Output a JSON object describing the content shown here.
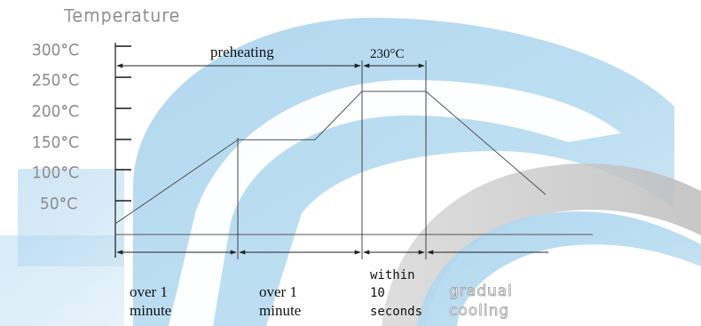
{
  "chart_data": {
    "type": "line",
    "ylabel": "Temperature",
    "ytick_labels": [
      "300°C",
      "250°C",
      "200°C",
      "150°C",
      "100°C",
      "50°C"
    ],
    "ylim": [
      0,
      300
    ],
    "series": [
      {
        "points": [
          {
            "x": 0,
            "y": 25
          },
          {
            "x": 1,
            "y": 155
          },
          {
            "x": 2,
            "y": 155
          },
          {
            "x": 3,
            "y": 230
          },
          {
            "x": 4,
            "y": 230
          },
          {
            "x": 5.5,
            "y": 70
          }
        ]
      }
    ],
    "phases": [
      {
        "label_lines": [
          "over 1",
          "minute"
        ]
      },
      {
        "label_lines": [
          "over 1",
          "minute"
        ]
      },
      {
        "label_lines": [
          "within",
          "10",
          "seconds"
        ]
      },
      {
        "label_lines": [
          "gradual",
          "cooling"
        ]
      }
    ],
    "annotations": {
      "preheating": "preheating",
      "peak": "230°C"
    },
    "grid": false,
    "legend": "none"
  },
  "colors": {
    "watermark_blue": "#a9d3ee",
    "watermark_gray": "#c9c9c9",
    "line": "#555555",
    "axis": "#1a1a1a"
  }
}
